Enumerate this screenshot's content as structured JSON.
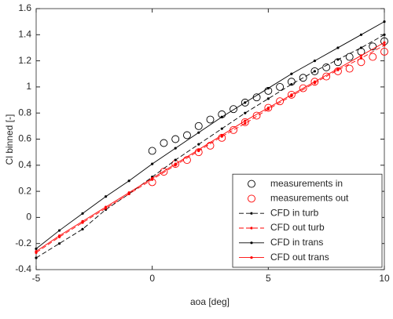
{
  "chart_data": {
    "type": "line",
    "x_label": "aoa [deg]",
    "y_label": "Cl binned [-]",
    "xlim": [
      -5,
      10
    ],
    "xticks": [
      -5,
      0,
      5,
      10
    ],
    "ylim": [
      -0.4,
      1.6
    ],
    "yticks": [
      -0.4,
      -0.2,
      0,
      0.2,
      0.4,
      0.6,
      0.8,
      1,
      1.2,
      1.4,
      1.6
    ],
    "legend": "lower right",
    "series": [
      {
        "name": "measurements in",
        "color": "#000000",
        "marker": "circle",
        "line": "none",
        "x": [
          0,
          0.5,
          1,
          1.5,
          2,
          2.5,
          3,
          3.5,
          4,
          4.5,
          5,
          5.5,
          6,
          6.5,
          7,
          7.5,
          8,
          8.5,
          9,
          9.5,
          10
        ],
        "values": [
          0.51,
          0.57,
          0.6,
          0.63,
          0.7,
          0.75,
          0.79,
          0.83,
          0.88,
          0.92,
          0.97,
          1.0,
          1.04,
          1.07,
          1.12,
          1.15,
          1.19,
          1.23,
          1.27,
          1.31,
          1.35
        ]
      },
      {
        "name": "measurements out",
        "color": "#ff0000",
        "marker": "circle",
        "line": "none",
        "x": [
          0,
          0.5,
          1,
          1.5,
          2,
          2.5,
          3,
          3.5,
          4,
          4.5,
          5,
          5.5,
          6,
          6.5,
          7,
          7.5,
          8,
          8.5,
          9,
          9.5,
          10
        ],
        "values": [
          0.27,
          0.35,
          0.41,
          0.44,
          0.5,
          0.55,
          0.61,
          0.67,
          0.73,
          0.78,
          0.84,
          0.89,
          0.94,
          0.99,
          1.04,
          1.08,
          1.12,
          1.14,
          1.19,
          1.23,
          1.27
        ]
      },
      {
        "name": "CFD in turb",
        "color": "#000000",
        "marker": "dot",
        "line": "dashed",
        "x": [
          -5,
          -4,
          -3,
          -2,
          -1,
          0,
          1,
          2,
          3,
          4,
          5,
          6,
          7,
          8,
          9,
          10
        ],
        "values": [
          -0.31,
          -0.2,
          -0.09,
          0.06,
          0.18,
          0.31,
          0.44,
          0.56,
          0.68,
          0.8,
          0.91,
          1.02,
          1.12,
          1.21,
          1.3,
          1.4
        ]
      },
      {
        "name": "CFD out turb",
        "color": "#ff0000",
        "marker": "dot",
        "line": "dashed",
        "x": [
          -5,
          -4,
          -3,
          -2,
          -1,
          0,
          1,
          2,
          3,
          4,
          5,
          6,
          7,
          8,
          9,
          10
        ],
        "values": [
          -0.27,
          -0.15,
          -0.04,
          0.07,
          0.18,
          0.29,
          0.4,
          0.51,
          0.62,
          0.72,
          0.83,
          0.93,
          1.03,
          1.13,
          1.22,
          1.32
        ]
      },
      {
        "name": "CFD in trans",
        "color": "#000000",
        "marker": "dot",
        "line": "solid",
        "x": [
          -5,
          -4,
          -3,
          -2,
          -1,
          0,
          1,
          2,
          3,
          4,
          5,
          6,
          7,
          8,
          9,
          10
        ],
        "values": [
          -0.24,
          -0.1,
          0.03,
          0.16,
          0.28,
          0.41,
          0.53,
          0.65,
          0.77,
          0.88,
          0.99,
          1.1,
          1.2,
          1.3,
          1.4,
          1.5
        ]
      },
      {
        "name": "CFD out trans",
        "color": "#ff0000",
        "marker": "dot",
        "line": "solid",
        "x": [
          -5,
          -4,
          -3,
          -2,
          -1,
          0,
          1,
          2,
          3,
          4,
          5,
          6,
          7,
          8,
          9,
          10
        ],
        "values": [
          -0.26,
          -0.14,
          -0.03,
          0.08,
          0.19,
          0.3,
          0.41,
          0.52,
          0.63,
          0.74,
          0.84,
          0.94,
          1.04,
          1.14,
          1.24,
          1.34
        ]
      }
    ]
  }
}
